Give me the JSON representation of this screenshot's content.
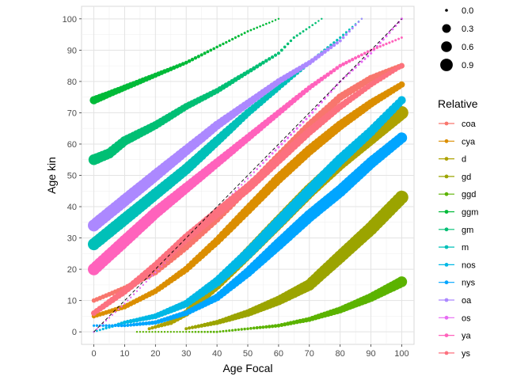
{
  "chart_data": {
    "type": "scatter",
    "title": "",
    "xlabel": "Age Focal",
    "ylabel": "Age kin",
    "xlim": [
      -4,
      104
    ],
    "ylim": [
      -4,
      104
    ],
    "x_ticks": [
      0,
      10,
      20,
      30,
      40,
      50,
      60,
      70,
      80,
      90,
      100
    ],
    "y_ticks": [
      0,
      10,
      20,
      30,
      40,
      50,
      60,
      70,
      80,
      90,
      100
    ],
    "grid": true,
    "reference_line": {
      "type": "diagonal",
      "style": "dashed",
      "from": [
        0,
        0
      ],
      "to": [
        100,
        100
      ]
    },
    "size_legend": {
      "title": "",
      "values": [
        "0.0",
        "0.3",
        "0.6",
        "0.9"
      ]
    },
    "color_legend": {
      "title": "Relative",
      "placement": "right"
    },
    "series": [
      {
        "name": "coa",
        "color": "#F8766D",
        "points": [
          [
            0,
            10,
            0.25
          ],
          [
            10,
            14,
            0.3
          ],
          [
            20,
            19,
            0.35
          ],
          [
            30,
            27,
            0.4
          ],
          [
            40,
            36,
            0.45
          ],
          [
            50,
            46,
            0.5
          ],
          [
            60,
            56,
            0.55
          ],
          [
            70,
            66,
            0.55
          ],
          [
            80,
            75,
            0.5
          ],
          [
            90,
            81,
            0.45
          ],
          [
            100,
            85,
            0.35
          ]
        ]
      },
      {
        "name": "cya",
        "color": "#DB8E00",
        "points": [
          [
            0,
            5,
            0.25
          ],
          [
            10,
            8,
            0.3
          ],
          [
            20,
            13,
            0.35
          ],
          [
            30,
            20,
            0.45
          ],
          [
            40,
            29,
            0.55
          ],
          [
            50,
            39,
            0.65
          ],
          [
            60,
            49,
            0.7
          ],
          [
            70,
            58,
            0.7
          ],
          [
            80,
            66,
            0.65
          ],
          [
            90,
            73,
            0.55
          ],
          [
            100,
            79,
            0.4
          ]
        ]
      },
      {
        "name": "d",
        "color": "#AEA200",
        "points": [
          [
            18,
            1,
            0.15
          ],
          [
            25,
            3,
            0.3
          ],
          [
            30,
            6,
            0.45
          ],
          [
            40,
            15,
            0.65
          ],
          [
            50,
            25,
            0.8
          ],
          [
            60,
            35,
            0.9
          ],
          [
            70,
            45,
            0.95
          ],
          [
            80,
            54,
            0.95
          ],
          [
            90,
            62,
            0.95
          ],
          [
            100,
            70,
            0.95
          ]
        ]
      },
      {
        "name": "gd",
        "color": "#9BA400",
        "points": [
          [
            30,
            1,
            0.15
          ],
          [
            40,
            3,
            0.3
          ],
          [
            50,
            6,
            0.5
          ],
          [
            60,
            10,
            0.65
          ],
          [
            70,
            15,
            0.8
          ],
          [
            80,
            24,
            0.9
          ],
          [
            90,
            33,
            0.95
          ],
          [
            100,
            43,
            0.95
          ]
        ]
      },
      {
        "name": "ggd",
        "color": "#5BB300",
        "points": [
          [
            14,
            0,
            0.05
          ],
          [
            30,
            0,
            0.05
          ],
          [
            40,
            0,
            0.08
          ],
          [
            50,
            1,
            0.12
          ],
          [
            60,
            2,
            0.2
          ],
          [
            70,
            4,
            0.3
          ],
          [
            80,
            7,
            0.45
          ],
          [
            90,
            11,
            0.6
          ],
          [
            100,
            16,
            0.75
          ]
        ]
      },
      {
        "name": "ggm",
        "color": "#00BA38",
        "points": [
          [
            0,
            74,
            0.55
          ],
          [
            5,
            76,
            0.45
          ],
          [
            10,
            78,
            0.4
          ],
          [
            20,
            82,
            0.3
          ],
          [
            30,
            86,
            0.2
          ],
          [
            40,
            91,
            0.12
          ],
          [
            50,
            96,
            0.08
          ],
          [
            60,
            100,
            0.05
          ]
        ]
      },
      {
        "name": "gm",
        "color": "#00BF74",
        "points": [
          [
            0,
            55,
            0.75
          ],
          [
            5,
            57,
            0.7
          ],
          [
            10,
            61,
            0.65
          ],
          [
            20,
            66,
            0.55
          ],
          [
            30,
            72,
            0.45
          ],
          [
            40,
            77,
            0.35
          ],
          [
            50,
            83,
            0.25
          ],
          [
            60,
            89,
            0.15
          ],
          [
            65,
            94,
            0.1
          ],
          [
            74,
            100,
            0.05
          ]
        ]
      },
      {
        "name": "m",
        "color": "#00C0B8",
        "points": [
          [
            0,
            28,
            0.85
          ],
          [
            10,
            36,
            0.85
          ],
          [
            20,
            44,
            0.8
          ],
          [
            30,
            52,
            0.75
          ],
          [
            40,
            61,
            0.65
          ],
          [
            50,
            70,
            0.5
          ],
          [
            60,
            78,
            0.35
          ],
          [
            70,
            86,
            0.2
          ],
          [
            80,
            94,
            0.1
          ],
          [
            87,
            100,
            0.05
          ]
        ]
      },
      {
        "name": "nos",
        "color": "#00B8E5",
        "points": [
          [
            0,
            0,
            0.05
          ],
          [
            10,
            3,
            0.2
          ],
          [
            20,
            5,
            0.35
          ],
          [
            30,
            9,
            0.5
          ],
          [
            40,
            16,
            0.65
          ],
          [
            50,
            25,
            0.75
          ],
          [
            60,
            35,
            0.8
          ],
          [
            70,
            45,
            0.8
          ],
          [
            80,
            55,
            0.75
          ],
          [
            90,
            64,
            0.65
          ],
          [
            100,
            74,
            0.55
          ]
        ]
      },
      {
        "name": "nys",
        "color": "#00A5FF",
        "points": [
          [
            0,
            2,
            0.1
          ],
          [
            10,
            2,
            0.15
          ],
          [
            20,
            3,
            0.25
          ],
          [
            30,
            6,
            0.35
          ],
          [
            40,
            11,
            0.5
          ],
          [
            50,
            19,
            0.65
          ],
          [
            60,
            28,
            0.8
          ],
          [
            70,
            37,
            0.85
          ],
          [
            80,
            45,
            0.85
          ],
          [
            90,
            54,
            0.8
          ],
          [
            100,
            62,
            0.75
          ]
        ]
      },
      {
        "name": "oa",
        "color": "#AC88FF",
        "points": [
          [
            0,
            34,
            0.85
          ],
          [
            10,
            42,
            0.85
          ],
          [
            20,
            50,
            0.8
          ],
          [
            30,
            58,
            0.7
          ],
          [
            40,
            66,
            0.6
          ],
          [
            50,
            73,
            0.5
          ],
          [
            60,
            80,
            0.4
          ],
          [
            70,
            86,
            0.3
          ],
          [
            80,
            93,
            0.15
          ],
          [
            87,
            100,
            0.05
          ]
        ]
      },
      {
        "name": "os",
        "color": "#E76BF3",
        "points": [
          [
            0,
            0,
            0.05
          ],
          [
            10,
            9,
            0.05
          ],
          [
            20,
            19,
            0.05
          ],
          [
            30,
            29,
            0.05
          ],
          [
            40,
            39,
            0.05
          ],
          [
            50,
            49,
            0.05
          ],
          [
            60,
            59,
            0.1
          ],
          [
            70,
            69,
            0.1
          ],
          [
            80,
            80,
            0.1
          ],
          [
            90,
            89,
            0.1
          ],
          [
            100,
            100,
            0.1
          ]
        ]
      },
      {
        "name": "ya",
        "color": "#FF62BC",
        "points": [
          [
            0,
            20,
            0.85
          ],
          [
            10,
            29,
            0.85
          ],
          [
            20,
            38,
            0.8
          ],
          [
            30,
            46,
            0.7
          ],
          [
            40,
            54,
            0.6
          ],
          [
            50,
            62,
            0.5
          ],
          [
            60,
            70,
            0.4
          ],
          [
            70,
            78,
            0.3
          ],
          [
            80,
            85,
            0.2
          ],
          [
            90,
            90,
            0.12
          ],
          [
            100,
            94,
            0.08
          ]
        ]
      },
      {
        "name": "ys",
        "color": "#FC717F",
        "points": [
          [
            0,
            6,
            0.35
          ],
          [
            10,
            13,
            0.45
          ],
          [
            20,
            21,
            0.55
          ],
          [
            30,
            30,
            0.6
          ],
          [
            40,
            38,
            0.65
          ],
          [
            50,
            46,
            0.65
          ],
          [
            60,
            55,
            0.6
          ],
          [
            70,
            64,
            0.55
          ],
          [
            80,
            72,
            0.45
          ],
          [
            90,
            79,
            0.35
          ],
          [
            100,
            85,
            0.25
          ]
        ]
      }
    ]
  }
}
